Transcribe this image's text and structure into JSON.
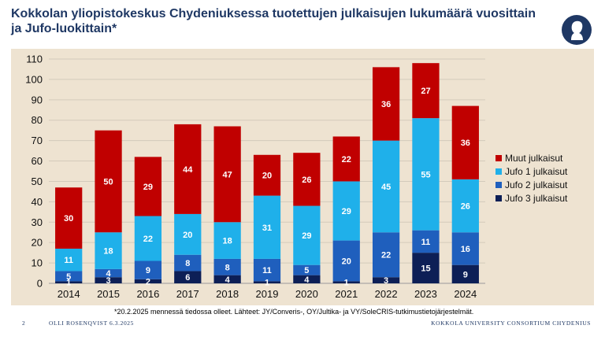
{
  "slide": {
    "title": "Kokkolan yliopistokeskus Chydeniuksessa tuotettujen julkaisujen lukumäärä vuosittain ja Jufo-luokittain*",
    "footnote": "*20.2.2025 mennessä tiedossa olleet. Lähteet: JY/Converis-, OY/Jultika- ja VY/SoleCRIS-tutkimustietojärjestelmät.",
    "page_number": "2",
    "author_date": "OLLI ROSENQVIST 6.3.2025",
    "organization": "KOKKOLA UNIVERSITY CONSORTIUM CHYDENIUS",
    "logo_icon": "portrait-silhouette-icon"
  },
  "colors": {
    "title": "#1f3864",
    "panel_background": "#eee3d1"
  },
  "chart_data": {
    "type": "bar",
    "stacked": true,
    "categories": [
      "2014",
      "2015",
      "2016",
      "2017",
      "2018",
      "2019",
      "2020",
      "2021",
      "2022",
      "2023",
      "2024"
    ],
    "ylim": [
      0,
      110
    ],
    "yticks": [
      0,
      10,
      20,
      30,
      40,
      50,
      60,
      70,
      80,
      90,
      100,
      110
    ],
    "xlabel": "",
    "ylabel": "",
    "grid": true,
    "legend_position": "right",
    "series": [
      {
        "name": "Jufo 3 julkaisut",
        "color": "#0d1f56",
        "values": [
          1,
          3,
          2,
          6,
          4,
          1,
          4,
          1,
          3,
          15,
          9
        ]
      },
      {
        "name": "Jufo 2 julkaisut",
        "color": "#1f5fbd",
        "values": [
          5,
          4,
          9,
          8,
          8,
          11,
          5,
          20,
          22,
          11,
          16
        ]
      },
      {
        "name": "Jufo 1 julkaisut",
        "color": "#1fb0ea",
        "values": [
          11,
          18,
          22,
          20,
          18,
          31,
          29,
          29,
          45,
          55,
          26
        ]
      },
      {
        "name": "Muut julkaisut",
        "color": "#c00000",
        "values": [
          30,
          50,
          29,
          44,
          47,
          20,
          26,
          22,
          36,
          27,
          36
        ]
      }
    ]
  }
}
